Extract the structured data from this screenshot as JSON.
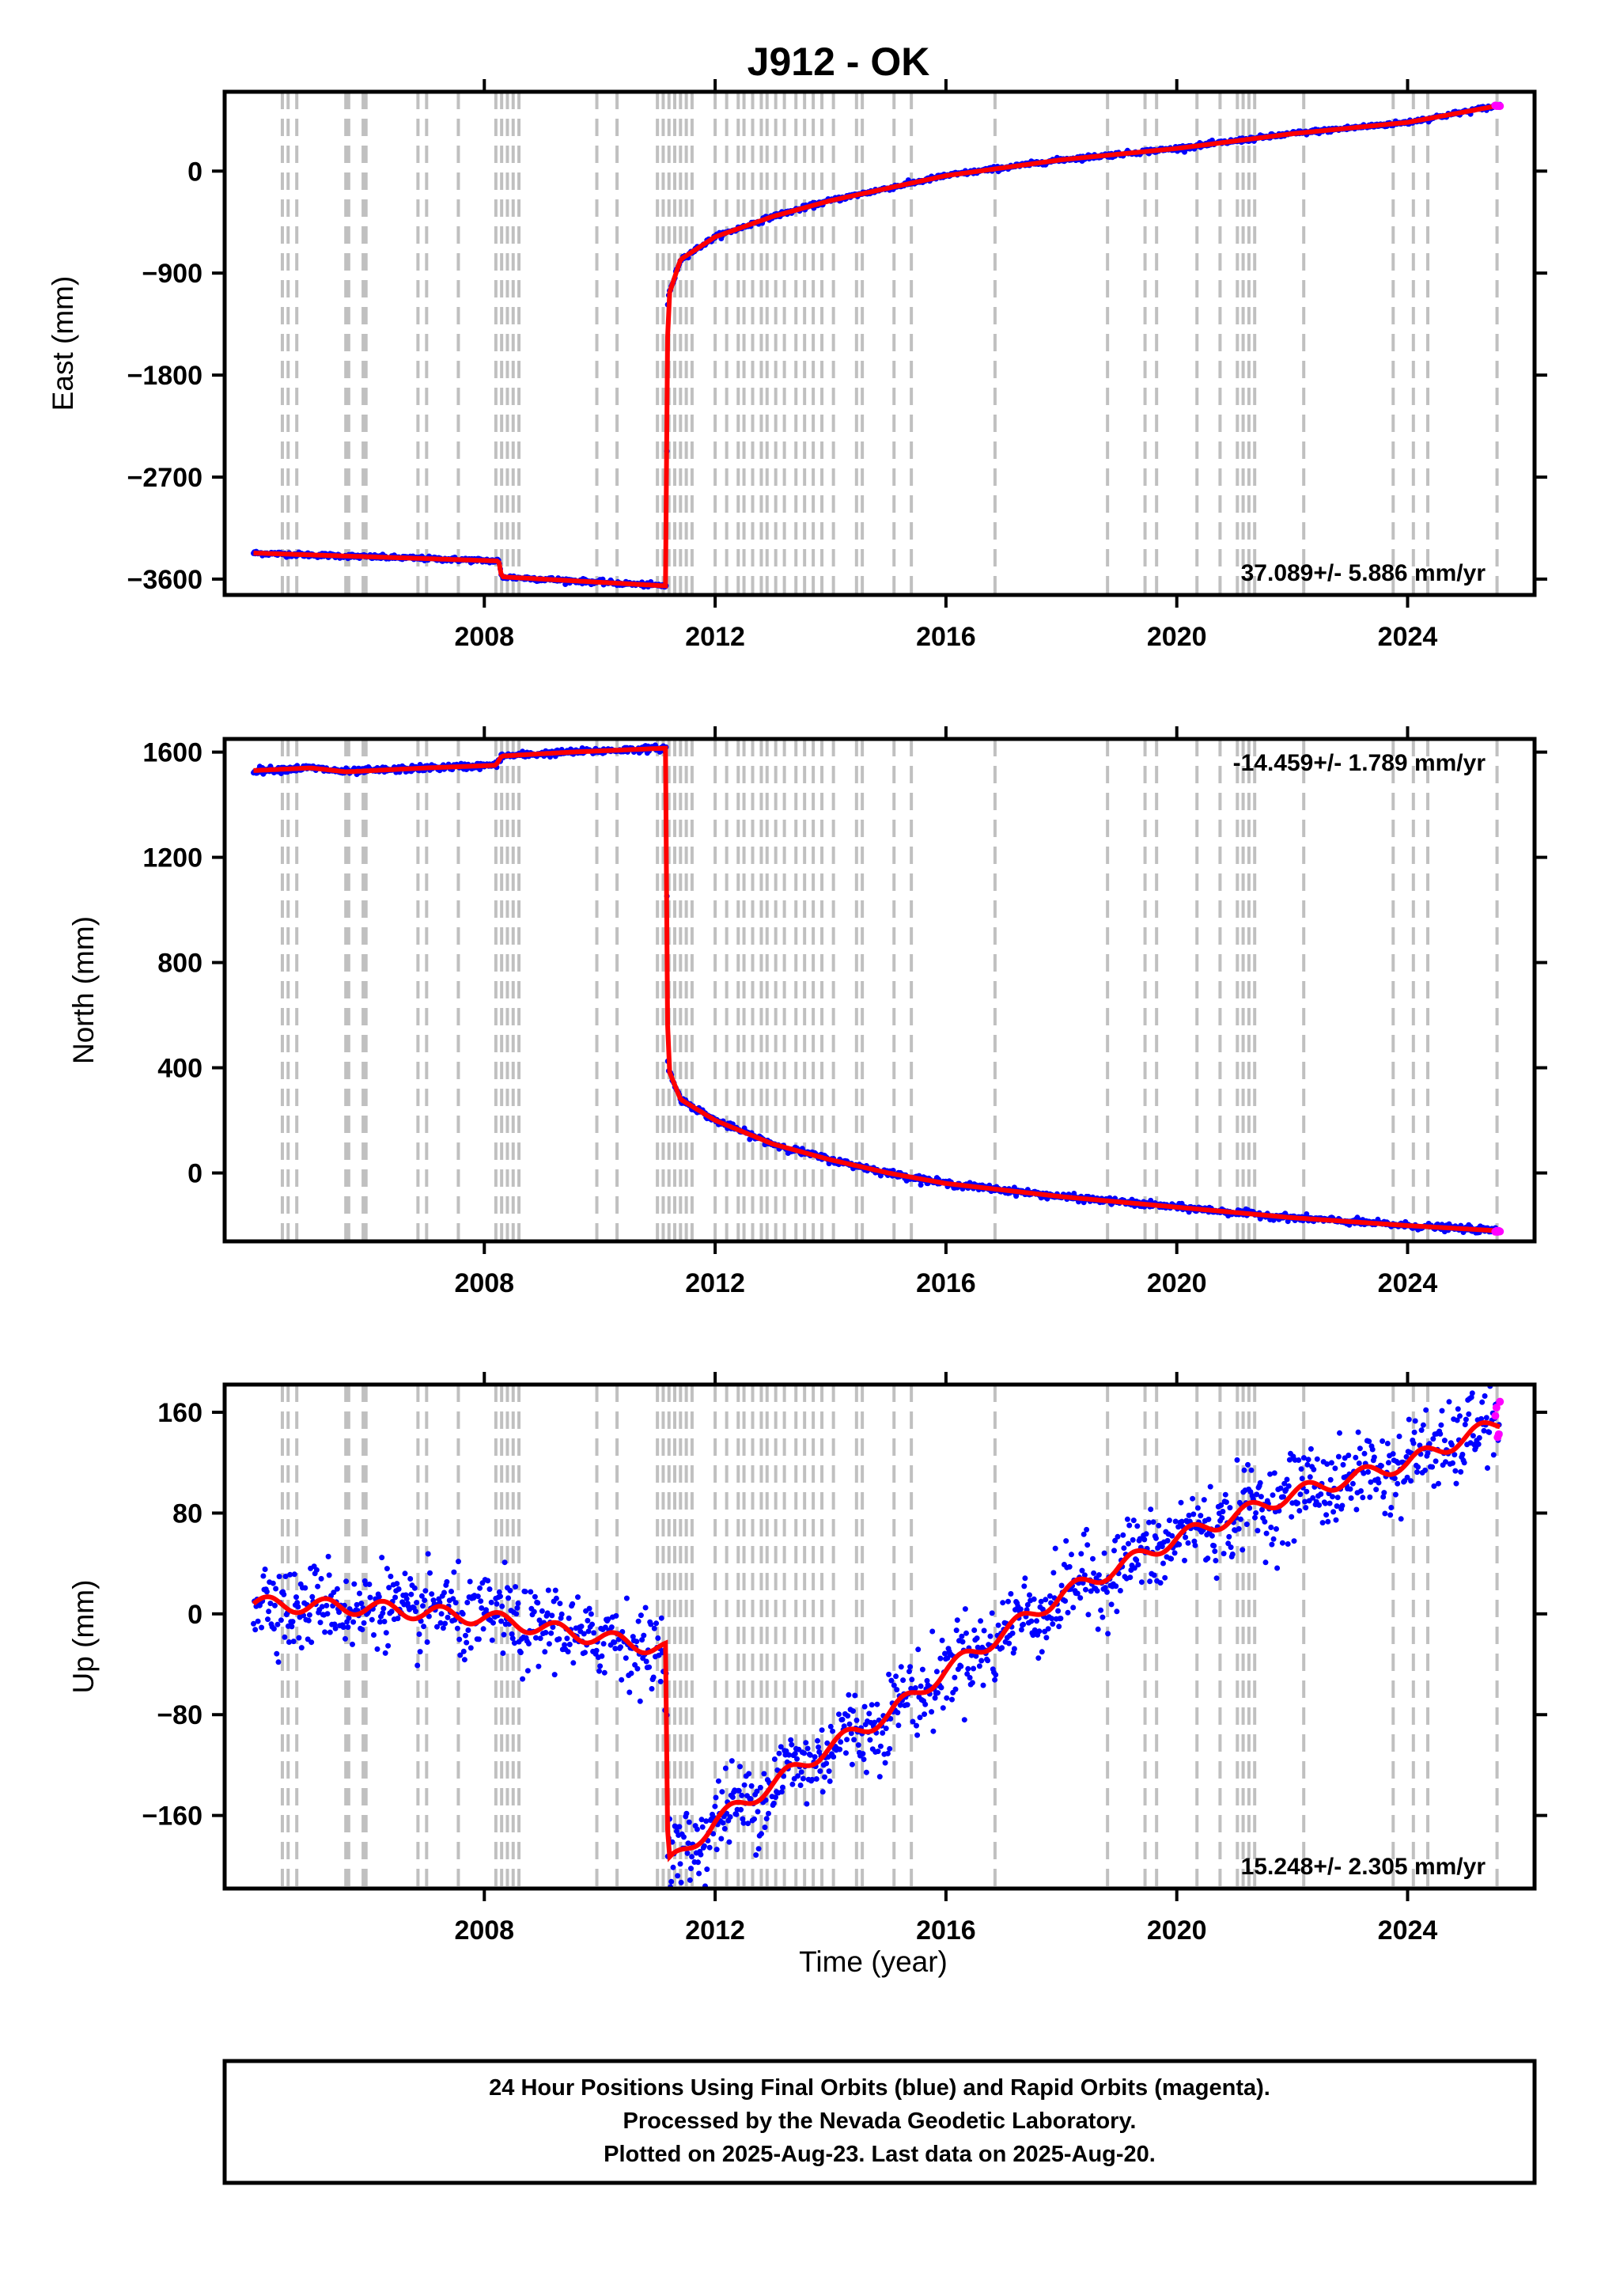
{
  "chart_data": {
    "type": "scatter",
    "title": "J912 - OK",
    "x_label": "Time (year)",
    "x_range": [
      2003.5,
      2026.2
    ],
    "x_ticks": [
      2008,
      2012,
      2016,
      2020,
      2024
    ],
    "series_colors": {
      "final": "#0000ff",
      "rapid": "#ff00ff",
      "model": "#ff0000",
      "event_lines": "#c0c0c0"
    },
    "event_lines": [
      2004.5,
      2004.6,
      2004.75,
      2005.6,
      2005.65,
      2005.9,
      2005.95,
      2006.85,
      2007.0,
      2007.55,
      2008.2,
      2008.3,
      2008.4,
      2008.5,
      2008.6,
      2009.95,
      2010.3,
      2011.0,
      2011.1,
      2011.2,
      2011.3,
      2011.4,
      2011.5,
      2011.6,
      2012.0,
      2012.2,
      2012.4,
      2012.5,
      2012.65,
      2012.8,
      2012.9,
      2013.05,
      2013.2,
      2013.4,
      2013.55,
      2013.7,
      2013.85,
      2014.05,
      2014.45,
      2014.55,
      2015.1,
      2015.4,
      2016.85,
      2018.8,
      2019.45,
      2019.65,
      2020.35,
      2020.75,
      2021.05,
      2021.15,
      2021.25,
      2021.35,
      2022.2,
      2023.75,
      2024.1,
      2024.35,
      2025.55
    ],
    "panels": [
      {
        "name": "east",
        "y_label": "East (mm)",
        "y_range": [
          -3740,
          700
        ],
        "y_ticks": [
          0,
          -900,
          -1800,
          -2700,
          -3600
        ],
        "y_tick_labels": [
          "0",
          "−900",
          "−1800",
          "−2700",
          "−3600"
        ],
        "rate_text": "37.089+/- 5.886 mm/yr",
        "rate_position": "bottom-right",
        "knots": [
          [
            2004.0,
            -3370
          ],
          [
            2008.25,
            -3440
          ],
          [
            2008.3,
            -3580
          ],
          [
            2011.15,
            -3660
          ],
          [
            2011.18,
            -1120
          ],
          [
            2011.4,
            -780
          ],
          [
            2012.0,
            -580
          ],
          [
            2013.0,
            -400
          ],
          [
            2014.0,
            -260
          ],
          [
            2015.0,
            -150
          ],
          [
            2016.0,
            -40
          ],
          [
            2018.0,
            100
          ],
          [
            2020.0,
            200
          ],
          [
            2022.0,
            330
          ],
          [
            2024.0,
            430
          ],
          [
            2025.6,
            580
          ]
        ],
        "scatter_noise": 10
      },
      {
        "name": "north",
        "y_label": "North (mm)",
        "y_range": [
          -260,
          1650
        ],
        "y_ticks": [
          1600,
          1200,
          800,
          400,
          0
        ],
        "y_tick_labels": [
          "1600",
          "1200",
          "800",
          "400",
          "0"
        ],
        "rate_text": "-14.459+/- 1.789 mm/yr",
        "rate_position": "top-right",
        "knots": [
          [
            2004.0,
            1530
          ],
          [
            2005.0,
            1540
          ],
          [
            2005.6,
            1525
          ],
          [
            2007.0,
            1540
          ],
          [
            2008.2,
            1550
          ],
          [
            2008.3,
            1585
          ],
          [
            2009.5,
            1600
          ],
          [
            2011.15,
            1615
          ],
          [
            2011.18,
            400
          ],
          [
            2011.4,
            280
          ],
          [
            2012.0,
            200
          ],
          [
            2013.0,
            110
          ],
          [
            2014.0,
            50
          ],
          [
            2015.0,
            0
          ],
          [
            2016.0,
            -40
          ],
          [
            2018.0,
            -90
          ],
          [
            2020.0,
            -130
          ],
          [
            2021.0,
            -150
          ],
          [
            2022.0,
            -170
          ],
          [
            2024.0,
            -200
          ],
          [
            2025.6,
            -220
          ]
        ],
        "scatter_noise": 6
      },
      {
        "name": "up",
        "y_label": "Up (mm)",
        "y_range": [
          -218,
          182
        ],
        "y_ticks": [
          160,
          80,
          0,
          -80,
          -160
        ],
        "y_tick_labels": [
          "160",
          "80",
          "0",
          "−80",
          "−160"
        ],
        "rate_text": "15.248+/- 2.305 mm/yr",
        "rate_position": "bottom-right",
        "knots": [
          [
            2004.0,
            8
          ],
          [
            2006.0,
            5
          ],
          [
            2008.0,
            -3
          ],
          [
            2009.5,
            -15
          ],
          [
            2011.15,
            -28
          ],
          [
            2011.18,
            -200
          ],
          [
            2012.0,
            -165
          ],
          [
            2013.0,
            -135
          ],
          [
            2014.0,
            -105
          ],
          [
            2015.0,
            -80
          ],
          [
            2016.0,
            -45
          ],
          [
            2018.0,
            15
          ],
          [
            2020.0,
            60
          ],
          [
            2022.0,
            95
          ],
          [
            2024.0,
            120
          ],
          [
            2025.6,
            152
          ]
        ],
        "scatter_noise": 16,
        "seasonal_amp": 6
      }
    ]
  },
  "footer": {
    "line1": "24 Hour Positions Using Final Orbits (blue) and Rapid Orbits (magenta).",
    "line2": "Processed by the Nevada Geodetic Laboratory.",
    "line3": "Plotted on 2025-Aug-23. Last data on 2025-Aug-20."
  }
}
